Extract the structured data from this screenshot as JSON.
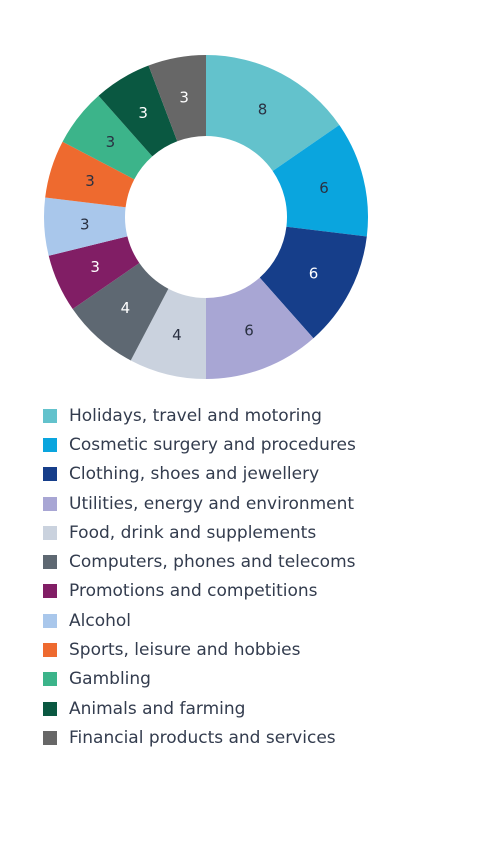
{
  "chart_data": {
    "type": "pie",
    "donut": true,
    "title": "",
    "legend_position": "bottom",
    "categories": [
      "Holidays, travel and motoring",
      "Cosmetic surgery and procedures",
      "Clothing, shoes and jewellery",
      "Utilities, energy and environment",
      "Food, drink and supplements",
      "Computers, phones and telecoms",
      "Promotions and competitions",
      "Alcohol",
      "Sports, leisure and hobbies",
      "Gambling",
      "Animals and farming",
      "Financial products and services"
    ],
    "values": [
      8,
      6,
      6,
      6,
      4,
      4,
      3,
      3,
      3,
      3,
      3,
      3
    ],
    "value_labels": [
      "8",
      "6",
      "6",
      "6",
      "4",
      "4",
      "3",
      "3",
      "3",
      "3",
      "3",
      "3"
    ],
    "colors": [
      "#63c2cc",
      "#0aa5de",
      "#163e8a",
      "#a8a6d4",
      "#cad2de",
      "#5e6872",
      "#811e65",
      "#a9c7eb",
      "#ee6a2f",
      "#3cb48a",
      "#0a5841",
      "#676767"
    ],
    "label_colors": [
      "#2a3142",
      "#2a3142",
      "#ffffff",
      "#2a3142",
      "#2a3142",
      "#ffffff",
      "#ffffff",
      "#2a3142",
      "#2a3142",
      "#2a3142",
      "#ffffff",
      "#ffffff"
    ]
  }
}
